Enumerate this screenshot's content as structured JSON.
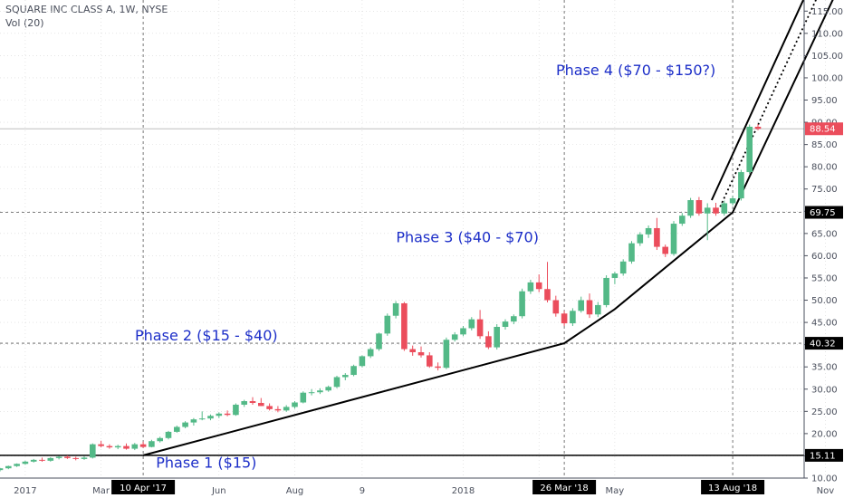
{
  "header": {
    "title": "SQUARE INC CLASS A, 1W, NYSE",
    "volume_label": "Vol (20)"
  },
  "colors": {
    "up": "#53b987",
    "down": "#eb4d5c",
    "trend": "#000000",
    "grid": "#d6d6d6",
    "annotation": "#1c2ec8"
  },
  "chart_data": {
    "type": "candlestick",
    "title": "SQUARE INC CLASS A, 1W, NYSE",
    "ylim": [
      10,
      117.5
    ],
    "y_ticks": [
      10,
      15,
      20,
      25,
      30,
      35,
      40,
      45,
      50,
      55,
      60,
      65,
      70,
      75,
      80,
      85,
      90,
      95,
      100,
      105,
      110,
      115
    ],
    "x_ticks": [
      {
        "label": "2017",
        "week": 3
      },
      {
        "label": "Mar",
        "week": 12
      },
      {
        "label": "Jun",
        "week": 26
      },
      {
        "label": "Aug",
        "week": 35
      },
      {
        "label": "9",
        "week": 43
      },
      {
        "label": "2018",
        "week": 55
      },
      {
        "label": "M",
        "week": 64
      },
      {
        "label": "May",
        "week": 73
      },
      {
        "label": "Nov",
        "week": 98
      }
    ],
    "x_markers": [
      {
        "label": "10 Apr '17",
        "week": 17
      },
      {
        "label": "26 Mar '18",
        "week": 67
      },
      {
        "label": "13 Aug '18",
        "week": 87
      }
    ],
    "price_levels": [
      {
        "label": "88.54",
        "value": 88.54,
        "style": "solid-gray",
        "tag": "#eb4d5c"
      },
      {
        "label": "69.75",
        "value": 69.75,
        "style": "dashed",
        "tag": "#000000"
      },
      {
        "label": "40.32",
        "value": 40.32,
        "style": "dashed",
        "tag": "#000000"
      },
      {
        "label": "15.11",
        "value": 15.11,
        "style": "solid-black",
        "tag": "#000000"
      }
    ],
    "annotations": [
      {
        "text": "Phase 1 ($15)",
        "week": 24.5,
        "value": 12.3
      },
      {
        "text": "Phase 2 ($15 - $40)",
        "week": 24.5,
        "value": 40.9
      },
      {
        "text": "Phase 3 ($40 - $70)",
        "week": 55.5,
        "value": 63.0
      },
      {
        "text": "Phase 4 ($70 - $150?)",
        "week": 75.5,
        "value": 100.6
      }
    ],
    "trendlines": [
      {
        "points": [
          [
            17,
            15.11
          ],
          [
            67,
            40.32
          ],
          [
            73,
            48
          ],
          [
            87,
            69.75
          ],
          [
            99,
            118
          ]
        ],
        "style": "solid"
      },
      {
        "points": [
          [
            84.5,
            72.5
          ],
          [
            95.5,
            118
          ]
        ],
        "style": "solid"
      },
      {
        "points": [
          [
            85.5,
            71
          ],
          [
            97,
            118
          ]
        ],
        "style": "dotted"
      }
    ],
    "candles": [
      {
        "w": 0,
        "o": 11.8,
        "h": 12.3,
        "l": 11.5,
        "c": 12.2
      },
      {
        "w": 1,
        "o": 12.2,
        "h": 12.8,
        "l": 12.0,
        "c": 12.7
      },
      {
        "w": 2,
        "o": 12.7,
        "h": 13.3,
        "l": 12.5,
        "c": 13.2
      },
      {
        "w": 3,
        "o": 13.2,
        "h": 13.9,
        "l": 13.0,
        "c": 13.7
      },
      {
        "w": 4,
        "o": 13.7,
        "h": 14.3,
        "l": 13.5,
        "c": 14.1
      },
      {
        "w": 5,
        "o": 14.1,
        "h": 14.6,
        "l": 13.7,
        "c": 13.9
      },
      {
        "w": 6,
        "o": 13.9,
        "h": 14.7,
        "l": 13.7,
        "c": 14.5
      },
      {
        "w": 7,
        "o": 14.5,
        "h": 15.0,
        "l": 14.2,
        "c": 14.8
      },
      {
        "w": 8,
        "o": 14.8,
        "h": 15.1,
        "l": 14.3,
        "c": 14.5
      },
      {
        "w": 9,
        "o": 14.5,
        "h": 14.8,
        "l": 14.0,
        "c": 14.3
      },
      {
        "w": 10,
        "o": 14.3,
        "h": 14.9,
        "l": 14.1,
        "c": 14.6
      },
      {
        "w": 11,
        "o": 14.6,
        "h": 17.8,
        "l": 14.4,
        "c": 17.6
      },
      {
        "w": 12,
        "o": 17.6,
        "h": 18.4,
        "l": 16.9,
        "c": 17.2
      },
      {
        "w": 13,
        "o": 17.2,
        "h": 17.6,
        "l": 16.6,
        "c": 16.9
      },
      {
        "w": 14,
        "o": 16.9,
        "h": 17.5,
        "l": 16.5,
        "c": 17.2
      },
      {
        "w": 15,
        "o": 17.2,
        "h": 17.8,
        "l": 16.4,
        "c": 16.6
      },
      {
        "w": 16,
        "o": 16.6,
        "h": 17.9,
        "l": 16.3,
        "c": 17.6
      },
      {
        "w": 17,
        "o": 17.6,
        "h": 18.2,
        "l": 16.8,
        "c": 17.0
      },
      {
        "w": 18,
        "o": 17.0,
        "h": 18.6,
        "l": 16.9,
        "c": 18.3
      },
      {
        "w": 19,
        "o": 18.3,
        "h": 19.3,
        "l": 18.0,
        "c": 19.0
      },
      {
        "w": 20,
        "o": 19.0,
        "h": 20.6,
        "l": 18.7,
        "c": 20.4
      },
      {
        "w": 21,
        "o": 20.4,
        "h": 21.8,
        "l": 20.2,
        "c": 21.5
      },
      {
        "w": 22,
        "o": 21.5,
        "h": 22.8,
        "l": 21.2,
        "c": 22.5
      },
      {
        "w": 23,
        "o": 22.5,
        "h": 23.5,
        "l": 21.8,
        "c": 23.2
      },
      {
        "w": 24,
        "o": 23.2,
        "h": 25.0,
        "l": 23.0,
        "c": 23.4
      },
      {
        "w": 25,
        "o": 23.4,
        "h": 24.3,
        "l": 23.0,
        "c": 24.0
      },
      {
        "w": 26,
        "o": 24.0,
        "h": 24.8,
        "l": 23.5,
        "c": 24.5
      },
      {
        "w": 27,
        "o": 24.5,
        "h": 25.2,
        "l": 23.9,
        "c": 24.2
      },
      {
        "w": 28,
        "o": 24.2,
        "h": 26.8,
        "l": 24.0,
        "c": 26.5
      },
      {
        "w": 29,
        "o": 26.5,
        "h": 27.6,
        "l": 26.0,
        "c": 27.3
      },
      {
        "w": 30,
        "o": 27.3,
        "h": 28.2,
        "l": 26.5,
        "c": 26.9
      },
      {
        "w": 31,
        "o": 26.9,
        "h": 28.0,
        "l": 26.2,
        "c": 26.2
      },
      {
        "w": 32,
        "o": 26.2,
        "h": 26.8,
        "l": 25.2,
        "c": 25.5
      },
      {
        "w": 33,
        "o": 25.5,
        "h": 26.2,
        "l": 24.8,
        "c": 25.2
      },
      {
        "w": 34,
        "o": 25.2,
        "h": 26.4,
        "l": 24.9,
        "c": 26.0
      },
      {
        "w": 35,
        "o": 26.0,
        "h": 27.3,
        "l": 25.6,
        "c": 27.0
      },
      {
        "w": 36,
        "o": 27.0,
        "h": 29.5,
        "l": 26.8,
        "c": 29.2
      },
      {
        "w": 37,
        "o": 29.2,
        "h": 30.0,
        "l": 28.6,
        "c": 29.3
      },
      {
        "w": 38,
        "o": 29.3,
        "h": 30.2,
        "l": 28.9,
        "c": 29.7
      },
      {
        "w": 39,
        "o": 29.7,
        "h": 30.8,
        "l": 29.4,
        "c": 30.5
      },
      {
        "w": 40,
        "o": 30.5,
        "h": 33.0,
        "l": 30.2,
        "c": 32.7
      },
      {
        "w": 41,
        "o": 32.7,
        "h": 33.6,
        "l": 32.0,
        "c": 33.2
      },
      {
        "w": 42,
        "o": 33.2,
        "h": 35.5,
        "l": 32.9,
        "c": 35.2
      },
      {
        "w": 43,
        "o": 35.2,
        "h": 37.6,
        "l": 34.9,
        "c": 37.4
      },
      {
        "w": 44,
        "o": 37.4,
        "h": 39.4,
        "l": 37.0,
        "c": 39.0
      },
      {
        "w": 45,
        "o": 39.0,
        "h": 42.7,
        "l": 38.6,
        "c": 42.5
      },
      {
        "w": 46,
        "o": 42.5,
        "h": 47.0,
        "l": 42.0,
        "c": 46.5
      },
      {
        "w": 47,
        "o": 46.5,
        "h": 49.8,
        "l": 45.9,
        "c": 49.3
      },
      {
        "w": 48,
        "o": 49.3,
        "h": 49.6,
        "l": 38.6,
        "c": 39.0
      },
      {
        "w": 49,
        "o": 39.0,
        "h": 39.8,
        "l": 37.5,
        "c": 38.3
      },
      {
        "w": 50,
        "o": 38.3,
        "h": 39.6,
        "l": 37.1,
        "c": 37.6
      },
      {
        "w": 51,
        "o": 37.6,
        "h": 38.3,
        "l": 34.8,
        "c": 35.1
      },
      {
        "w": 52,
        "o": 35.1,
        "h": 36.0,
        "l": 34.2,
        "c": 34.8
      },
      {
        "w": 53,
        "o": 34.8,
        "h": 41.6,
        "l": 34.5,
        "c": 41.1
      },
      {
        "w": 54,
        "o": 41.1,
        "h": 42.8,
        "l": 40.7,
        "c": 42.3
      },
      {
        "w": 55,
        "o": 42.3,
        "h": 44.2,
        "l": 41.9,
        "c": 43.7
      },
      {
        "w": 56,
        "o": 43.7,
        "h": 46.2,
        "l": 43.2,
        "c": 45.7
      },
      {
        "w": 57,
        "o": 45.7,
        "h": 47.8,
        "l": 41.3,
        "c": 41.9
      },
      {
        "w": 58,
        "o": 41.9,
        "h": 43.0,
        "l": 39.0,
        "c": 39.4
      },
      {
        "w": 59,
        "o": 39.4,
        "h": 44.6,
        "l": 38.9,
        "c": 44.0
      },
      {
        "w": 60,
        "o": 44.0,
        "h": 45.7,
        "l": 43.4,
        "c": 45.2
      },
      {
        "w": 61,
        "o": 45.2,
        "h": 46.8,
        "l": 44.6,
        "c": 46.4
      },
      {
        "w": 62,
        "o": 46.4,
        "h": 52.6,
        "l": 45.9,
        "c": 52.0
      },
      {
        "w": 63,
        "o": 52.0,
        "h": 54.6,
        "l": 51.4,
        "c": 54.0
      },
      {
        "w": 64,
        "o": 54.0,
        "h": 55.8,
        "l": 51.8,
        "c": 52.5
      },
      {
        "w": 65,
        "o": 52.5,
        "h": 58.6,
        "l": 49.5,
        "c": 50.0
      },
      {
        "w": 66,
        "o": 50.0,
        "h": 51.0,
        "l": 46.3,
        "c": 47.0
      },
      {
        "w": 67,
        "o": 47.0,
        "h": 47.6,
        "l": 44.2,
        "c": 44.8
      },
      {
        "w": 68,
        "o": 44.8,
        "h": 48.2,
        "l": 44.2,
        "c": 47.6
      },
      {
        "w": 69,
        "o": 47.6,
        "h": 50.8,
        "l": 47.2,
        "c": 50.0
      },
      {
        "w": 70,
        "o": 50.0,
        "h": 51.5,
        "l": 46.0,
        "c": 46.8
      },
      {
        "w": 71,
        "o": 46.8,
        "h": 49.6,
        "l": 46.2,
        "c": 48.9
      },
      {
        "w": 72,
        "o": 48.9,
        "h": 55.6,
        "l": 48.4,
        "c": 55.0
      },
      {
        "w": 73,
        "o": 55.0,
        "h": 56.4,
        "l": 53.6,
        "c": 56.0
      },
      {
        "w": 74,
        "o": 56.0,
        "h": 59.2,
        "l": 55.5,
        "c": 58.7
      },
      {
        "w": 75,
        "o": 58.7,
        "h": 63.3,
        "l": 58.2,
        "c": 62.8
      },
      {
        "w": 76,
        "o": 62.8,
        "h": 65.3,
        "l": 62.2,
        "c": 64.8
      },
      {
        "w": 77,
        "o": 64.8,
        "h": 66.8,
        "l": 64.0,
        "c": 66.2
      },
      {
        "w": 78,
        "o": 66.2,
        "h": 68.5,
        "l": 61.3,
        "c": 62.0
      },
      {
        "w": 79,
        "o": 62.0,
        "h": 62.5,
        "l": 59.7,
        "c": 60.4
      },
      {
        "w": 80,
        "o": 60.4,
        "h": 67.8,
        "l": 60.0,
        "c": 67.2
      },
      {
        "w": 81,
        "o": 67.2,
        "h": 69.6,
        "l": 66.7,
        "c": 69.0
      },
      {
        "w": 82,
        "o": 69.0,
        "h": 73.0,
        "l": 68.5,
        "c": 72.5
      },
      {
        "w": 83,
        "o": 72.5,
        "h": 73.2,
        "l": 69.0,
        "c": 69.5
      },
      {
        "w": 84,
        "o": 69.5,
        "h": 71.8,
        "l": 63.5,
        "c": 70.8
      },
      {
        "w": 85,
        "o": 70.8,
        "h": 71.9,
        "l": 69.0,
        "c": 69.5
      },
      {
        "w": 86,
        "o": 69.5,
        "h": 72.4,
        "l": 69.0,
        "c": 71.8
      },
      {
        "w": 87,
        "o": 71.8,
        "h": 73.4,
        "l": 71.3,
        "c": 72.9
      },
      {
        "w": 88,
        "o": 72.9,
        "h": 79.3,
        "l": 72.4,
        "c": 78.8
      },
      {
        "w": 89,
        "o": 78.8,
        "h": 89.5,
        "l": 78.4,
        "c": 89.0
      },
      {
        "w": 90,
        "o": 89.0,
        "h": 89.6,
        "l": 88.2,
        "c": 88.54
      }
    ]
  }
}
